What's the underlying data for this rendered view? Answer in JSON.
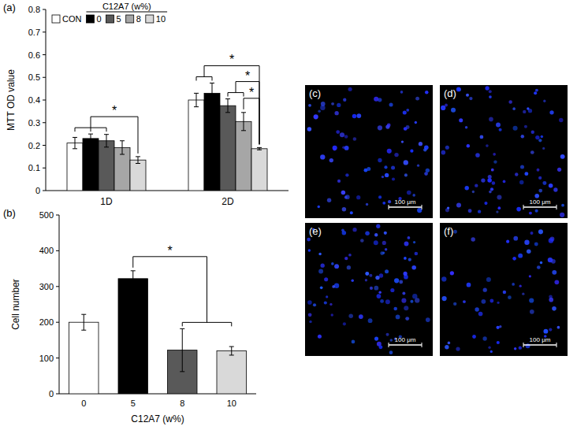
{
  "chart_data": [
    {
      "type": "bar",
      "title": "(a)",
      "y_label": "MTT OD value",
      "legend_title": "C12A7 (w%)",
      "legend": "top-left",
      "categories": [
        "1D",
        "2D"
      ],
      "series": [
        {
          "name": "CON",
          "color": "#ffffff",
          "values": [
            0.21,
            0.4
          ],
          "errors": [
            0.025,
            0.03
          ]
        },
        {
          "name": "0",
          "color": "#000000",
          "values": [
            0.23,
            0.43
          ],
          "errors": [
            0.02,
            0.045
          ]
        },
        {
          "name": "5",
          "color": "#595959",
          "values": [
            0.22,
            0.375
          ],
          "errors": [
            0.028,
            0.03
          ]
        },
        {
          "name": "8",
          "color": "#a6a6a6",
          "values": [
            0.19,
            0.305
          ],
          "errors": [
            0.03,
            0.04
          ]
        },
        {
          "name": "10",
          "color": "#d9d9d9",
          "values": [
            0.135,
            0.185
          ],
          "errors": [
            0.015,
            0.005
          ]
        }
      ],
      "ylim": [
        0,
        0.8
      ],
      "yticks": [
        0,
        0.1,
        0.2,
        0.3,
        0.4,
        0.5,
        0.6,
        0.7,
        0.8
      ],
      "annotations": [
        {
          "text": "*",
          "category": "1D",
          "from": [
            "CON",
            "0",
            "5"
          ],
          "to": [
            "10"
          ]
        },
        {
          "text": "*",
          "category": "2D",
          "from": [
            "8"
          ],
          "to": [
            "10"
          ]
        },
        {
          "text": "*",
          "category": "2D",
          "from": [
            "5",
            "8"
          ],
          "to": [
            "10"
          ]
        },
        {
          "text": "*",
          "category": "2D",
          "from": [
            "CON",
            "0"
          ],
          "to": [
            "10"
          ]
        }
      ]
    },
    {
      "type": "bar",
      "title": "(b)",
      "y_label": "Cell number",
      "x_label": "C12A7 (w%)",
      "categories": [
        "0",
        "5",
        "8",
        "10"
      ],
      "values": [
        200,
        322,
        122,
        120
      ],
      "errors": [
        22,
        22,
        60,
        12
      ],
      "colors": [
        "#ffffff",
        "#000000",
        "#595959",
        "#d9d9d9"
      ],
      "ylim": [
        0,
        500
      ],
      "yticks": [
        0,
        100,
        200,
        300,
        400,
        500
      ],
      "annotations": [
        {
          "text": "*",
          "from": [
            "5"
          ],
          "to": [
            "8",
            "10"
          ]
        }
      ]
    }
  ],
  "images": [
    {
      "label": "(c)",
      "scale_bar": "100 μm"
    },
    {
      "label": "(d)",
      "scale_bar": "100 μm"
    },
    {
      "label": "(e)",
      "scale_bar": "100 μm"
    },
    {
      "label": "(f)",
      "scale_bar": "100 μm"
    }
  ]
}
